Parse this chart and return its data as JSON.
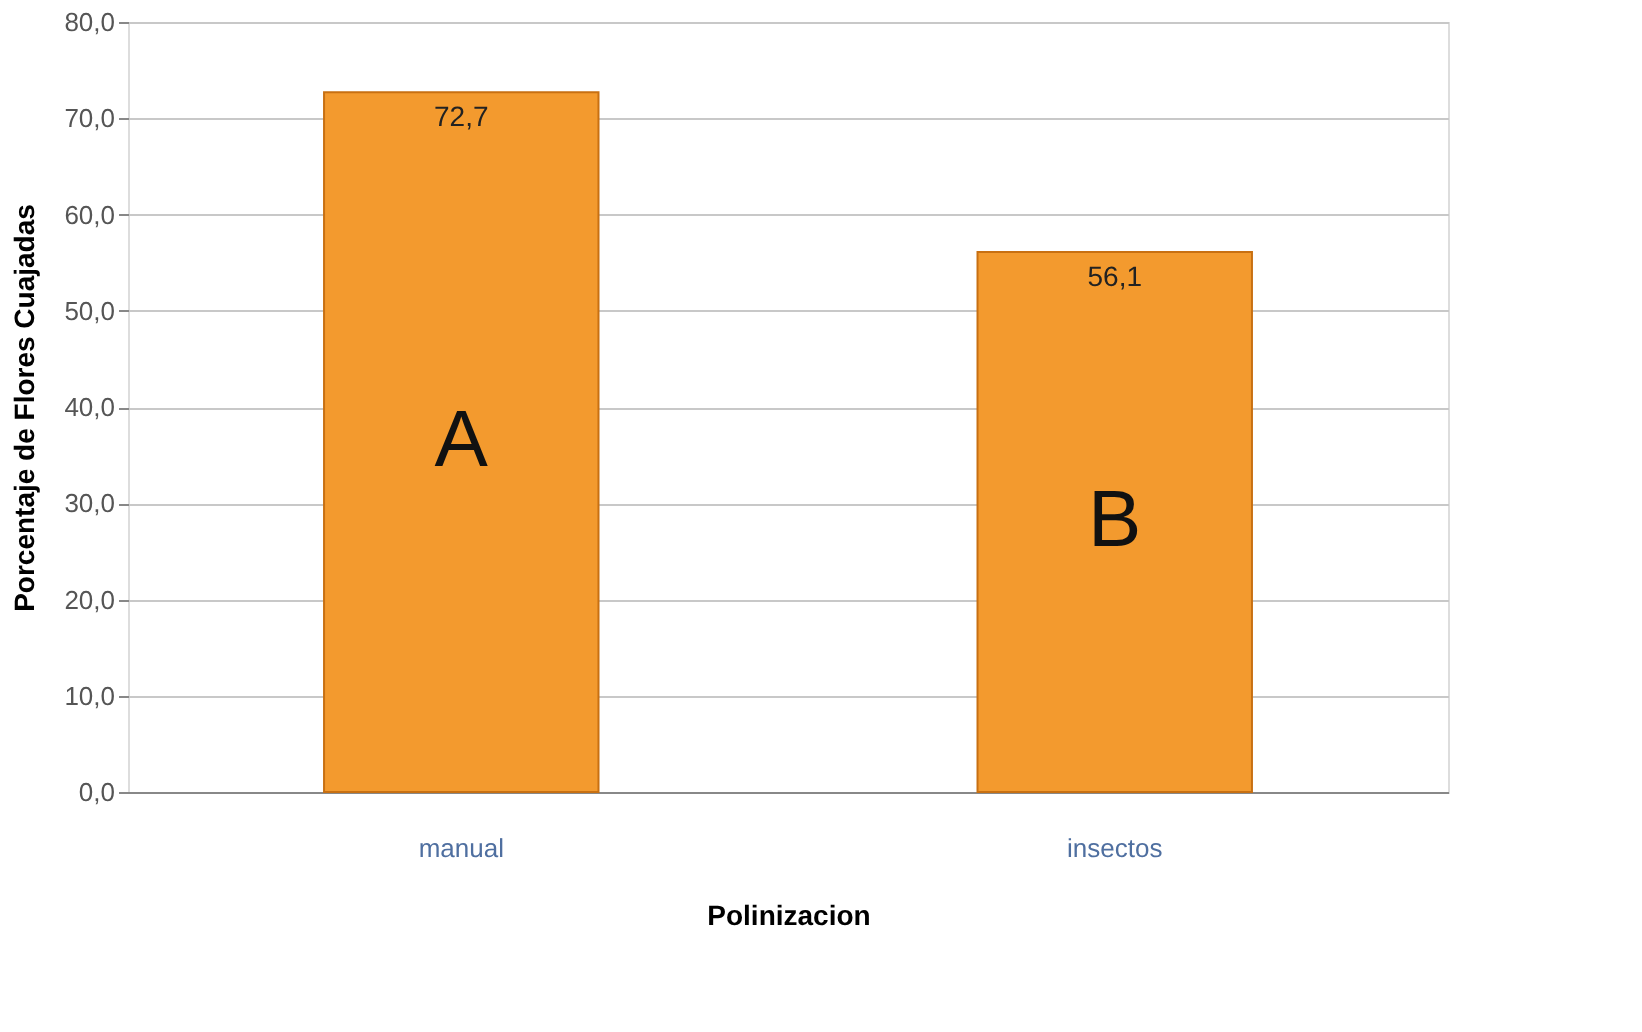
{
  "chart_data": {
    "type": "bar",
    "xlabel": "Polinizacion",
    "ylabel": "Porcentaje de Flores Cuajadas",
    "categories": [
      "manual",
      "insectos"
    ],
    "values": [
      72.7,
      56.1
    ],
    "value_labels": [
      "72,7",
      "56,1"
    ],
    "color": "#f39a2e",
    "ylim": [
      0,
      80
    ],
    "yticks": [
      {
        "value": 0,
        "label": "0,0"
      },
      {
        "value": 10,
        "label": "10,0"
      },
      {
        "value": 20,
        "label": "20,0"
      },
      {
        "value": 30,
        "label": "30,0"
      },
      {
        "value": 40,
        "label": "40,0"
      },
      {
        "value": 50,
        "label": "50,0"
      },
      {
        "value": 60,
        "label": "60,0"
      },
      {
        "value": 70,
        "label": "70,0"
      },
      {
        "value": 80,
        "label": "80,0"
      }
    ],
    "grid": "y",
    "annotations": [
      "A",
      "B"
    ]
  }
}
